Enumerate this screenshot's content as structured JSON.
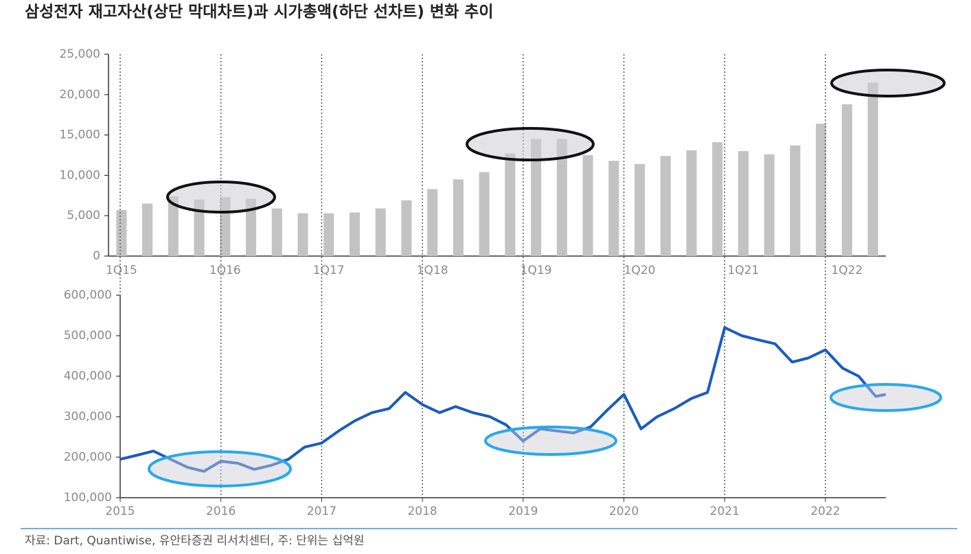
{
  "title": "삼성전자 재고자산(상단 막대차트)과 시가총액(하단 선차트) 변화 추이",
  "source": "자료: Dart, Quantiwise, 유안타증권 리서치센터, 주: 단위는 십억원",
  "chart_data": [
    {
      "type": "bar",
      "categories": [
        "1Q15",
        null,
        null,
        null,
        "1Q16",
        null,
        null,
        null,
        "1Q17",
        null,
        null,
        null,
        "1Q18",
        null,
        null,
        null,
        "1Q19",
        null,
        null,
        null,
        "1Q20",
        null,
        null,
        null,
        "1Q21",
        null,
        null,
        null,
        "1Q22",
        null
      ],
      "values": [
        5700,
        6500,
        7400,
        7000,
        7300,
        7100,
        5900,
        5300,
        5300,
        5400,
        5900,
        6900,
        8300,
        9500,
        10400,
        12700,
        14500,
        14500,
        12500,
        11800,
        11400,
        12400,
        13100,
        14100,
        13000,
        12600,
        13700,
        16400,
        18800,
        21500
      ],
      "color": "#c3c3c3",
      "ylim": [
        0,
        25000
      ],
      "yticks": [
        0,
        {
          "value": 5000,
          "label": "5,000"
        },
        {
          "value": 10000,
          "label": "10,000"
        },
        {
          "value": 15000,
          "label": "15,000"
        },
        {
          "value": 20000,
          "label": "20,000"
        },
        {
          "value": 25000,
          "label": "25,000"
        }
      ],
      "grid": false
    },
    {
      "type": "line",
      "x": [
        2015.0,
        2015.17,
        2015.33,
        2015.5,
        2015.67,
        2015.83,
        2016.0,
        2016.17,
        2016.33,
        2016.5,
        2016.67,
        2016.83,
        2017.0,
        2017.17,
        2017.33,
        2017.5,
        2017.67,
        2017.83,
        2018.0,
        2018.17,
        2018.33,
        2018.5,
        2018.67,
        2018.83,
        2019.0,
        2019.17,
        2019.33,
        2019.5,
        2019.67,
        2019.83,
        2020.0,
        2020.17,
        2020.33,
        2020.5,
        2020.67,
        2020.83,
        2021.0,
        2021.17,
        2021.33,
        2021.5,
        2021.67,
        2021.83,
        2022.0,
        2022.17,
        2022.33,
        2022.5,
        2022.6
      ],
      "values": [
        195000,
        205000,
        215000,
        195000,
        175000,
        165000,
        190000,
        185000,
        170000,
        180000,
        195000,
        225000,
        235000,
        265000,
        290000,
        310000,
        320000,
        360000,
        330000,
        310000,
        325000,
        310000,
        300000,
        280000,
        240000,
        270000,
        265000,
        260000,
        275000,
        315000,
        355000,
        270000,
        300000,
        320000,
        345000,
        360000,
        520000,
        500000,
        490000,
        480000,
        435000,
        445000,
        465000,
        420000,
        400000,
        350000,
        355000
      ],
      "color": "#1a5cc0",
      "xlim": [
        2015,
        2022.6
      ],
      "xticks": [
        2015,
        2016,
        2017,
        2018,
        2019,
        2020,
        2021,
        2022
      ],
      "ylim": [
        100000,
        600000
      ],
      "yticks": [
        {
          "value": 100000,
          "label": "100,000"
        },
        {
          "value": 200000,
          "label": "200,000"
        },
        {
          "value": 300000,
          "label": "300,000"
        },
        {
          "value": 400000,
          "label": "400,000"
        },
        {
          "value": 500000,
          "label": "500,000"
        },
        {
          "value": 600000,
          "label": "600,000"
        }
      ],
      "grid": true
    }
  ]
}
